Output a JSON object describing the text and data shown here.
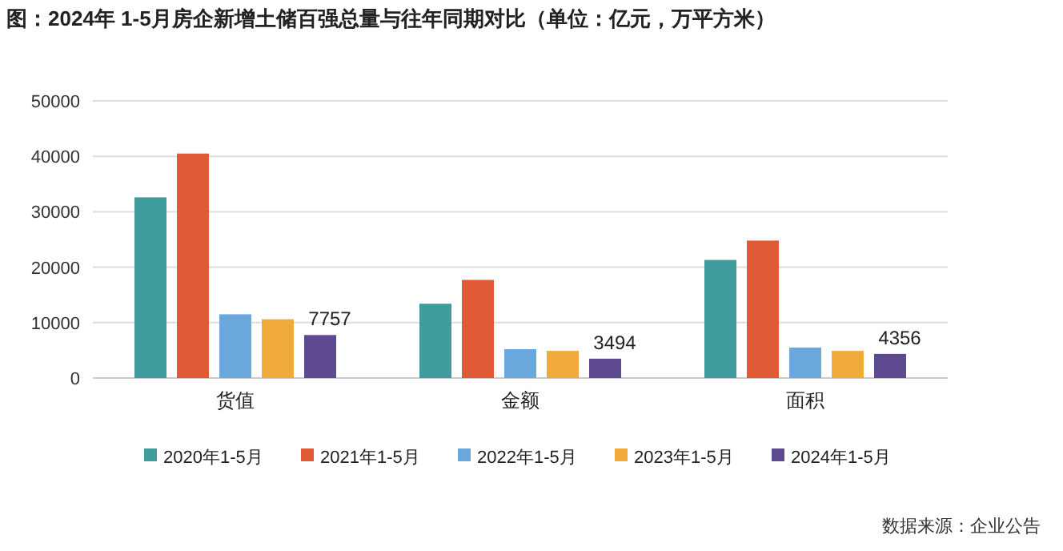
{
  "chart_data": {
    "type": "bar",
    "title": "图：2024年 1-5月房企新增土储百强总量与往年同期对比（单位：亿元，万平方米）",
    "categories": [
      "货值",
      "金额",
      "面积"
    ],
    "series": [
      {
        "name": "2020年1-5月",
        "color": "#3e9c9c",
        "values": [
          32600,
          13400,
          21300
        ]
      },
      {
        "name": "2021年1-5月",
        "color": "#e05a35",
        "values": [
          40500,
          17700,
          24800
        ]
      },
      {
        "name": "2022年1-5月",
        "color": "#6aa7dc",
        "values": [
          11500,
          5200,
          5500
        ]
      },
      {
        "name": "2023年1-5月",
        "color": "#f0aa3c",
        "values": [
          10600,
          4900,
          4900
        ]
      },
      {
        "name": "2024年1-5月",
        "color": "#5e4a91",
        "values": [
          7757,
          3494,
          4356
        ],
        "value_labels": [
          "7757",
          "3494",
          "4356"
        ]
      }
    ],
    "ylim": [
      0,
      50000
    ],
    "yticks": [
      0,
      10000,
      20000,
      30000,
      40000,
      50000
    ],
    "grid": "y",
    "legend": "bottom",
    "annotations": [
      "数据来源：企业公告"
    ]
  }
}
